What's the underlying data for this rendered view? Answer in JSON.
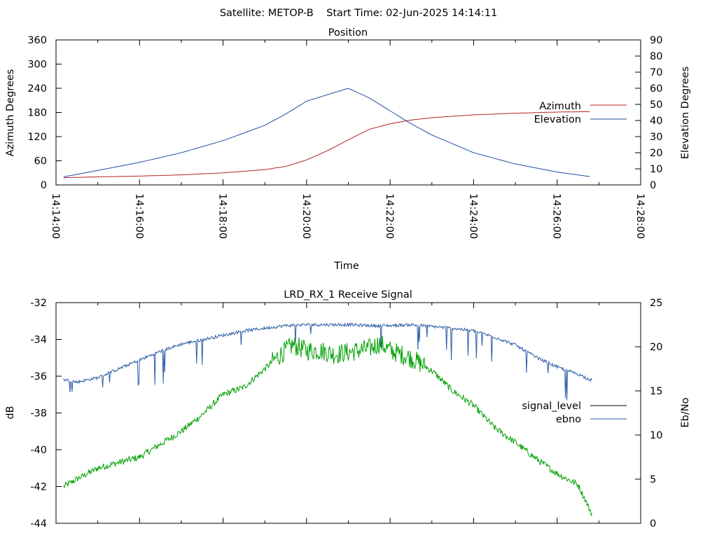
{
  "header": {
    "text": "Satellite: METOP-B    Start Time: 02-Jun-2025 14:14:11"
  },
  "colors": {
    "azimuth": "#b22222",
    "elevation": "#1f4fa0",
    "signal_level": "#000000",
    "ebno": "#2b5ca8",
    "signal_trace": "#00a000",
    "axis": "#000000",
    "background": "#ffffff"
  },
  "chart_data": [
    {
      "type": "line",
      "title": "Position",
      "xlabel": "Time",
      "ylabel": "Azimuth Degrees",
      "y2label": "Elevation Degrees",
      "xlim": [
        "14:14:00",
        "14:28:00"
      ],
      "ylim": [
        0,
        360
      ],
      "y2lim": [
        0,
        90
      ],
      "x_ticks": [
        "14:14:00",
        "14:16:00",
        "14:18:00",
        "14:20:00",
        "14:22:00",
        "14:24:00",
        "14:26:00",
        "14:28:00"
      ],
      "y_ticks": [
        "0",
        "60",
        "120",
        "180",
        "240",
        "300",
        "360"
      ],
      "y2_ticks": [
        "0",
        "10",
        "20",
        "30",
        "40",
        "50",
        "60",
        "70",
        "80",
        "90"
      ],
      "legend_position": "right",
      "grid": false,
      "series": [
        {
          "name": "Azimuth",
          "axis": "left",
          "color": "#b22222",
          "x": [
            "14:14:11",
            "14:15:00",
            "14:16:00",
            "14:17:00",
            "14:18:00",
            "14:19:00",
            "14:19:30",
            "14:20:00",
            "14:20:30",
            "14:21:00",
            "14:21:30",
            "14:22:00",
            "14:22:30",
            "14:23:00",
            "14:24:00",
            "14:25:00",
            "14:26:00",
            "14:26:50"
          ],
          "values": [
            18,
            20,
            22,
            25,
            30,
            38,
            46,
            62,
            85,
            112,
            138,
            152,
            161,
            167,
            174,
            178,
            181,
            182
          ]
        },
        {
          "name": "Elevation",
          "axis": "right",
          "color": "#1f4fa0",
          "x": [
            "14:14:11",
            "14:15:00",
            "14:16:00",
            "14:17:00",
            "14:18:00",
            "14:19:00",
            "14:19:30",
            "14:20:00",
            "14:20:30",
            "14:21:00",
            "14:21:30",
            "14:22:00",
            "14:22:30",
            "14:23:00",
            "14:24:00",
            "14:25:00",
            "14:26:00",
            "14:26:50"
          ],
          "values": [
            5,
            9,
            14,
            20,
            27.5,
            37,
            44,
            52,
            56,
            60,
            54,
            46,
            38,
            31,
            20,
            13,
            8,
            5
          ]
        }
      ]
    },
    {
      "type": "line",
      "title": "LRD_RX_1 Receive Signal",
      "xlabel": "",
      "ylabel": "dB",
      "y2label": "Eb/No",
      "xlim": [
        "14:14:00",
        "14:28:00"
      ],
      "ylim": [
        -44,
        -32
      ],
      "y2lim": [
        0,
        25
      ],
      "y_ticks": [
        "-32",
        "-34",
        "-36",
        "-38",
        "-40",
        "-42",
        "-44"
      ],
      "y2_ticks": [
        "25",
        "20",
        "15",
        "10",
        "5",
        "0"
      ],
      "legend_position": "right",
      "grid": false,
      "series": [
        {
          "name": "signal_level",
          "axis": "left",
          "color": "#00a000",
          "x": [
            "14:14:11",
            "14:14:30",
            "14:15:00",
            "14:15:30",
            "14:16:00",
            "14:16:30",
            "14:17:00",
            "14:17:30",
            "14:18:00",
            "14:18:30",
            "14:19:00",
            "14:19:20",
            "14:19:40",
            "14:20:00",
            "14:20:20",
            "14:20:40",
            "14:21:00",
            "14:21:30",
            "14:21:45",
            "14:22:00",
            "14:22:30",
            "14:23:00",
            "14:23:30",
            "14:24:00",
            "14:24:30",
            "14:25:00",
            "14:25:30",
            "14:26:00",
            "14:26:30",
            "14:26:50"
          ],
          "values": [
            -42.0,
            -41.6,
            -41.0,
            -40.7,
            -40.4,
            -39.7,
            -39.0,
            -38.1,
            -37.0,
            -36.6,
            -35.6,
            -34.9,
            -34.3,
            -34.6,
            -34.6,
            -34.8,
            -34.7,
            -34.5,
            -34.2,
            -34.6,
            -35.0,
            -35.7,
            -36.8,
            -37.6,
            -38.8,
            -39.6,
            -40.5,
            -41.3,
            -41.9,
            -43.5
          ]
        },
        {
          "name": "ebno",
          "axis": "right",
          "color": "#2b5ca8",
          "x": [
            "14:14:11",
            "14:14:30",
            "14:15:00",
            "14:15:30",
            "14:16:00",
            "14:16:30",
            "14:17:00",
            "14:17:30",
            "14:18:00",
            "14:18:30",
            "14:19:00",
            "14:19:30",
            "14:20:00",
            "14:20:30",
            "14:21:00",
            "14:21:30",
            "14:22:00",
            "14:22:30",
            "14:23:00",
            "14:23:30",
            "14:24:00",
            "14:24:30",
            "14:25:00",
            "14:25:30",
            "14:26:00",
            "14:26:30",
            "14:26:50"
          ],
          "values": [
            16.3,
            16.0,
            16.5,
            17.5,
            18.5,
            19.5,
            20.3,
            20.8,
            21.3,
            21.8,
            22.1,
            22.4,
            22.5,
            22.5,
            22.5,
            22.4,
            22.4,
            22.5,
            22.3,
            22.1,
            21.8,
            21.1,
            20.2,
            18.8,
            17.7,
            16.9,
            16.2
          ]
        }
      ]
    }
  ]
}
